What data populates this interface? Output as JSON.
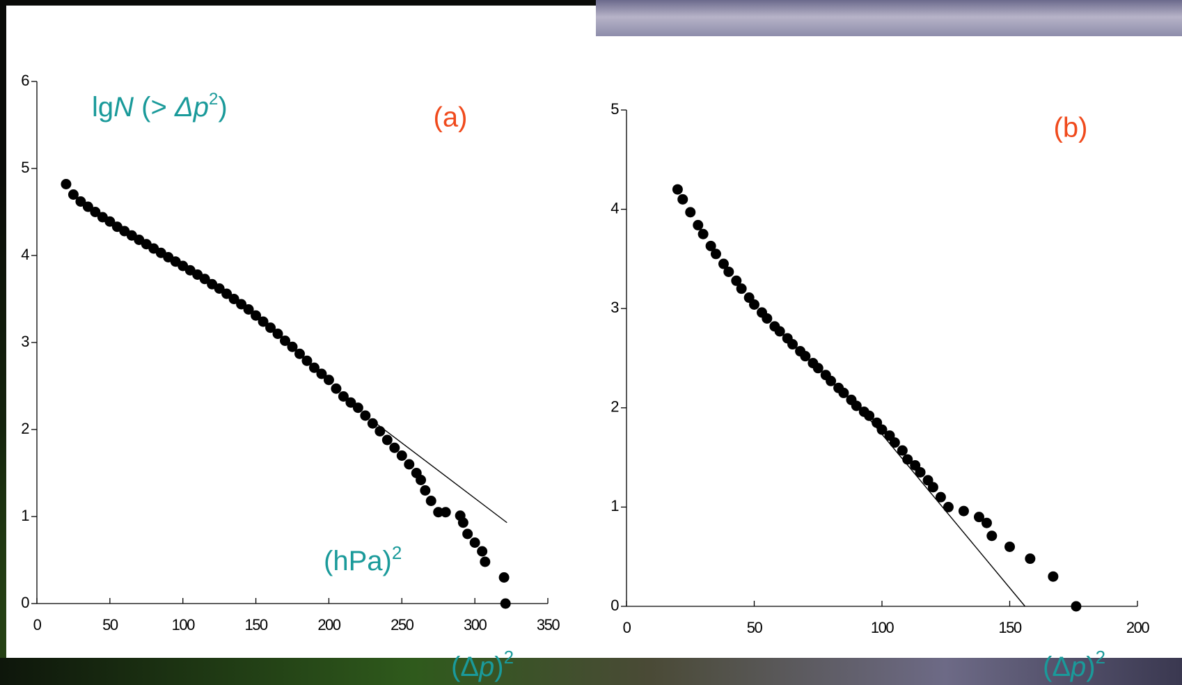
{
  "chart_data": [
    {
      "type": "scatter",
      "panel_label": "(a)",
      "ylabel": [
        "lg",
        "N",
        " (> ",
        "Δp",
        "2",
        ")"
      ],
      "units": [
        "(hPa)",
        "2"
      ],
      "xlabel": [
        "(Δ",
        "p",
        ")",
        "2"
      ],
      "xlim": [
        0,
        350
      ],
      "xticks": [
        0,
        50,
        100,
        150,
        200,
        250,
        300,
        350
      ],
      "ylim": [
        0,
        6
      ],
      "yticks": [
        0,
        1,
        2,
        3,
        4,
        5,
        6
      ],
      "series": [
        {
          "style": "points",
          "color": "#000000",
          "x": [
            20,
            25,
            30,
            35,
            40,
            45,
            50,
            55,
            60,
            65,
            70,
            75,
            80,
            85,
            90,
            95,
            100,
            105,
            110,
            115,
            120,
            125,
            130,
            135,
            140,
            145,
            150,
            155,
            160,
            165,
            170,
            175,
            180,
            185,
            190,
            195,
            200,
            205,
            210,
            215,
            220,
            225,
            230,
            235,
            240,
            245,
            250,
            255,
            260,
            263,
            266,
            270,
            275,
            280,
            290,
            292,
            295,
            300,
            305,
            307,
            320,
            321
          ],
          "values": [
            4.82,
            4.7,
            4.62,
            4.56,
            4.5,
            4.44,
            4.39,
            4.33,
            4.28,
            4.23,
            4.18,
            4.13,
            4.08,
            4.03,
            3.98,
            3.93,
            3.88,
            3.83,
            3.78,
            3.73,
            3.67,
            3.62,
            3.56,
            3.5,
            3.44,
            3.38,
            3.31,
            3.24,
            3.17,
            3.1,
            3.02,
            2.95,
            2.87,
            2.79,
            2.71,
            2.64,
            2.57,
            2.47,
            2.38,
            2.31,
            2.25,
            2.16,
            2.07,
            1.98,
            1.88,
            1.79,
            1.7,
            1.6,
            1.5,
            1.42,
            1.3,
            1.18,
            1.05,
            1.05,
            1.01,
            0.93,
            0.8,
            0.7,
            0.6,
            0.48,
            0.3,
            0.0
          ]
        },
        {
          "style": "line",
          "color": "#000000",
          "x": [
            230,
            322
          ],
          "values": [
            2.1,
            0.93
          ]
        }
      ]
    },
    {
      "type": "scatter",
      "panel_label": "(b)",
      "xlabel": [
        "(Δ",
        "p",
        ")",
        "2"
      ],
      "xlim": [
        0,
        200
      ],
      "xticks": [
        0,
        50,
        100,
        150,
        200
      ],
      "ylim": [
        0,
        5
      ],
      "yticks": [
        0,
        1,
        2,
        3,
        4,
        5
      ],
      "series": [
        {
          "style": "points",
          "color": "#000000",
          "x": [
            20,
            22,
            25,
            28,
            30,
            33,
            35,
            38,
            40,
            43,
            45,
            48,
            50,
            53,
            55,
            58,
            60,
            63,
            65,
            68,
            70,
            73,
            75,
            78,
            80,
            83,
            85,
            88,
            90,
            93,
            95,
            98,
            100,
            103,
            105,
            108,
            110,
            113,
            115,
            118,
            120,
            123,
            126,
            132,
            138,
            141,
            143,
            150,
            158,
            167,
            176
          ],
          "values": [
            4.2,
            4.1,
            3.97,
            3.84,
            3.75,
            3.63,
            3.55,
            3.45,
            3.37,
            3.28,
            3.2,
            3.11,
            3.04,
            2.96,
            2.9,
            2.82,
            2.77,
            2.7,
            2.64,
            2.57,
            2.52,
            2.45,
            2.4,
            2.33,
            2.27,
            2.2,
            2.15,
            2.08,
            2.02,
            1.96,
            1.92,
            1.85,
            1.78,
            1.72,
            1.65,
            1.57,
            1.48,
            1.42,
            1.35,
            1.27,
            1.2,
            1.1,
            1.0,
            0.96,
            0.9,
            0.84,
            0.71,
            0.6,
            0.48,
            0.3,
            0.0
          ]
        },
        {
          "style": "line",
          "color": "#000000",
          "x": [
            93,
            156
          ],
          "values": [
            1.95,
            0
          ]
        }
      ]
    }
  ]
}
